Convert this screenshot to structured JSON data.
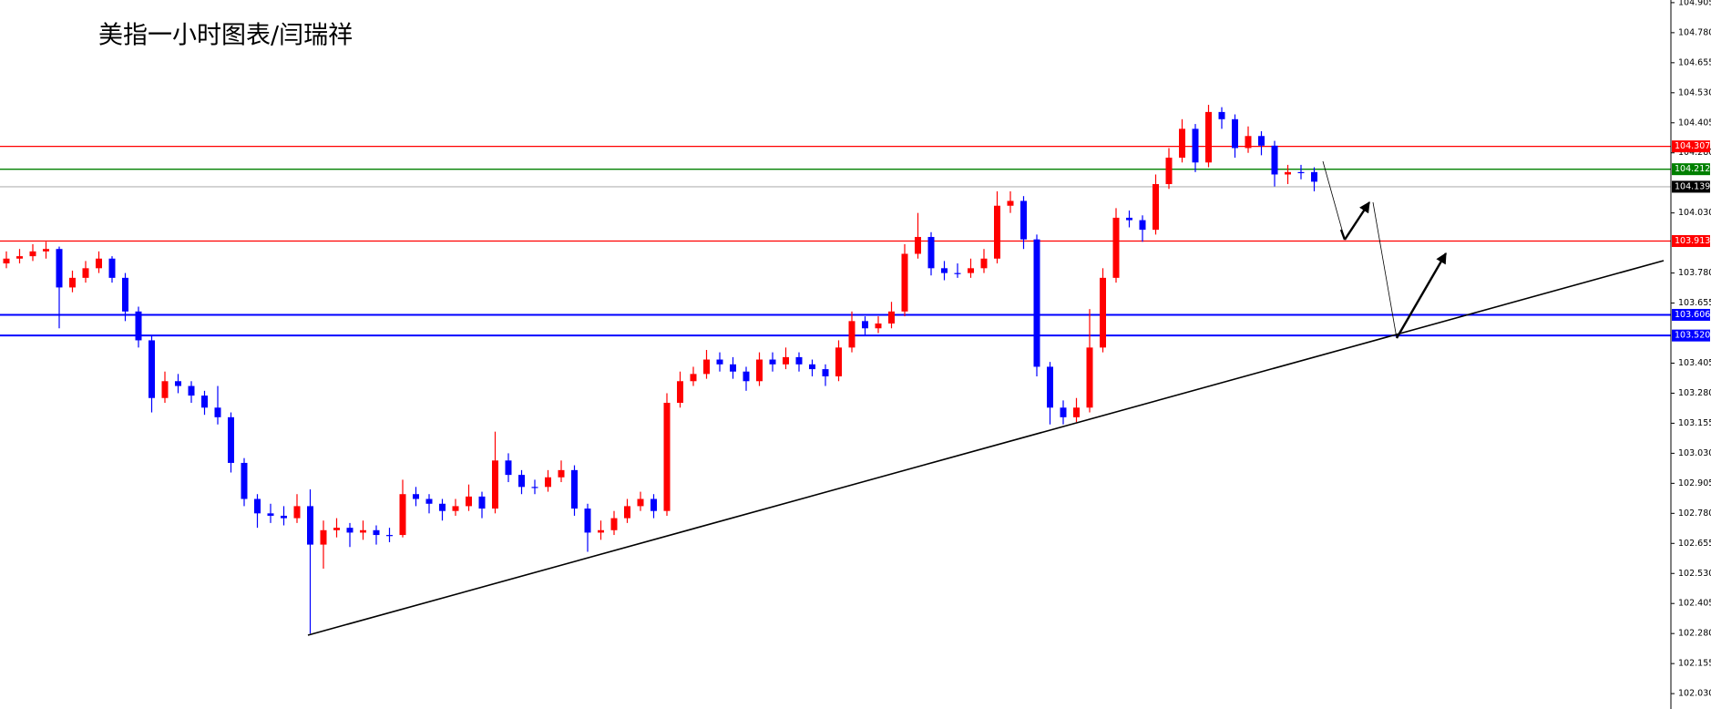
{
  "chart_data": {
    "type": "candlestick",
    "title": "美指一小时图表/闫瑞祥",
    "ylim": [
      101.966,
      104.916
    ],
    "yticks": [
      104.905,
      {
        "value": 104.78,
        "label": "104.780"
      },
      104.655,
      {
        "value": 104.53,
        "label": "104.530"
      },
      104.405,
      {
        "value": 104.28,
        "label": "104.280"
      },
      {
        "value": 104.03,
        "label": "104.030"
      },
      {
        "value": 103.78,
        "label": "103.780"
      },
      103.655,
      103.405,
      {
        "value": 103.28,
        "label": "103.280"
      },
      103.155,
      {
        "value": 103.03,
        "label": "103.030"
      },
      102.905,
      {
        "value": 102.78,
        "label": "102.780"
      },
      102.655,
      {
        "value": 102.53,
        "label": "102.530"
      },
      102.405,
      {
        "value": 102.28,
        "label": "102.280"
      },
      102.155,
      {
        "value": 102.03,
        "label": "102.030"
      }
    ],
    "up_color": "#ff0000",
    "down_color": "#0000ff",
    "levels": [
      {
        "value": 104.307,
        "color": "#ff0000"
      },
      {
        "value": 104.212,
        "color": "#008000"
      },
      {
        "value": 104.139,
        "color": "#000000",
        "line_color": "#c0c0c0"
      },
      {
        "value": 103.913,
        "color": "#ff0000"
      },
      {
        "value": 103.606,
        "color": "#0000ff"
      },
      {
        "value": 103.52,
        "label": "103.520",
        "color": "#0000ff"
      }
    ],
    "candles": [
      [
        103.82,
        103.87,
        103.8,
        103.84
      ],
      [
        103.84,
        103.88,
        103.82,
        103.85
      ],
      [
        103.85,
        103.9,
        103.83,
        103.87
      ],
      [
        103.87,
        103.91,
        103.84,
        103.88
      ],
      [
        103.88,
        103.89,
        103.55,
        103.72
      ],
      [
        103.72,
        103.79,
        103.7,
        103.76
      ],
      [
        103.76,
        103.83,
        103.74,
        103.8
      ],
      [
        103.8,
        103.87,
        103.78,
        103.84
      ],
      [
        103.84,
        103.85,
        103.74,
        103.76
      ],
      [
        103.76,
        103.78,
        103.58,
        103.62
      ],
      [
        103.62,
        103.64,
        103.47,
        103.5
      ],
      [
        103.5,
        103.52,
        103.2,
        103.26
      ],
      [
        103.26,
        103.37,
        103.24,
        103.33
      ],
      [
        103.33,
        103.36,
        103.28,
        103.31
      ],
      [
        103.31,
        103.33,
        103.24,
        103.27
      ],
      [
        103.27,
        103.29,
        103.19,
        103.22
      ],
      [
        103.22,
        103.31,
        103.15,
        103.18
      ],
      [
        103.18,
        103.2,
        102.95,
        102.99
      ],
      [
        102.99,
        103.01,
        102.81,
        102.84
      ],
      [
        102.84,
        102.86,
        102.72,
        102.78
      ],
      [
        102.78,
        102.82,
        102.74,
        102.77
      ],
      [
        102.77,
        102.81,
        102.73,
        102.76
      ],
      [
        102.76,
        102.86,
        102.74,
        102.81
      ],
      [
        102.81,
        102.88,
        102.28,
        102.65
      ],
      [
        102.65,
        102.75,
        102.55,
        102.71
      ],
      [
        102.71,
        102.76,
        102.68,
        102.72
      ],
      [
        102.72,
        102.74,
        102.64,
        102.7
      ],
      [
        102.7,
        102.75,
        102.67,
        102.71
      ],
      [
        102.71,
        102.73,
        102.65,
        102.69
      ],
      [
        102.69,
        102.72,
        102.66,
        102.69
      ],
      [
        102.69,
        102.92,
        102.68,
        102.86
      ],
      [
        102.86,
        102.89,
        102.81,
        102.84
      ],
      [
        102.84,
        102.86,
        102.78,
        102.82
      ],
      [
        102.82,
        102.84,
        102.75,
        102.79
      ],
      [
        102.79,
        102.84,
        102.77,
        102.81
      ],
      [
        102.81,
        102.9,
        102.79,
        102.85
      ],
      [
        102.85,
        102.87,
        102.76,
        102.8
      ],
      [
        102.8,
        103.12,
        102.78,
        103.0
      ],
      [
        103.0,
        103.03,
        102.91,
        102.94
      ],
      [
        102.94,
        102.96,
        102.86,
        102.89
      ],
      [
        102.89,
        102.92,
        102.86,
        102.89
      ],
      [
        102.89,
        102.96,
        102.87,
        102.93
      ],
      [
        102.93,
        103.0,
        102.91,
        102.96
      ],
      [
        102.96,
        102.98,
        102.77,
        102.8
      ],
      [
        102.8,
        102.82,
        102.62,
        102.7
      ],
      [
        102.7,
        102.75,
        102.67,
        102.71
      ],
      [
        102.71,
        102.79,
        102.69,
        102.76
      ],
      [
        102.76,
        102.84,
        102.74,
        102.81
      ],
      [
        102.81,
        102.87,
        102.79,
        102.84
      ],
      [
        102.84,
        102.86,
        102.76,
        102.79
      ],
      [
        102.79,
        103.28,
        102.77,
        103.24
      ],
      [
        103.24,
        103.37,
        103.22,
        103.33
      ],
      [
        103.33,
        103.39,
        103.31,
        103.36
      ],
      [
        103.36,
        103.46,
        103.34,
        103.42
      ],
      [
        103.42,
        103.45,
        103.37,
        103.4
      ],
      [
        103.4,
        103.43,
        103.34,
        103.37
      ],
      [
        103.37,
        103.39,
        103.29,
        103.33
      ],
      [
        103.33,
        103.45,
        103.31,
        103.42
      ],
      [
        103.42,
        103.45,
        103.37,
        103.4
      ],
      [
        103.4,
        103.47,
        103.38,
        103.43
      ],
      [
        103.43,
        103.45,
        103.37,
        103.4
      ],
      [
        103.4,
        103.42,
        103.35,
        103.38
      ],
      [
        103.38,
        103.4,
        103.31,
        103.35
      ],
      [
        103.35,
        103.5,
        103.33,
        103.47
      ],
      [
        103.47,
        103.62,
        103.45,
        103.58
      ],
      [
        103.58,
        103.6,
        103.52,
        103.55
      ],
      [
        103.55,
        103.6,
        103.53,
        103.57
      ],
      [
        103.57,
        103.66,
        103.55,
        103.62
      ],
      [
        103.62,
        103.9,
        103.6,
        103.86
      ],
      [
        103.86,
        104.03,
        103.84,
        103.93
      ],
      [
        103.93,
        103.95,
        103.77,
        103.8
      ],
      [
        103.8,
        103.83,
        103.75,
        103.78
      ],
      [
        103.78,
        103.82,
        103.76,
        103.78
      ],
      [
        103.78,
        103.84,
        103.76,
        103.8
      ],
      [
        103.8,
        103.88,
        103.78,
        103.84
      ],
      [
        103.84,
        104.12,
        103.82,
        104.06
      ],
      [
        104.06,
        104.12,
        104.03,
        104.08
      ],
      [
        104.08,
        104.1,
        103.88,
        103.92
      ],
      [
        103.92,
        103.94,
        103.35,
        103.39
      ],
      [
        103.39,
        103.41,
        103.15,
        103.22
      ],
      [
        103.22,
        103.25,
        103.15,
        103.18
      ],
      [
        103.18,
        103.26,
        103.16,
        103.22
      ],
      [
        103.22,
        103.63,
        103.2,
        103.47
      ],
      [
        103.47,
        103.8,
        103.45,
        103.76
      ],
      [
        103.76,
        104.05,
        103.74,
        104.01
      ],
      [
        104.01,
        104.04,
        103.97,
        104.0
      ],
      [
        104.0,
        104.02,
        103.91,
        103.96
      ],
      [
        103.96,
        104.19,
        103.94,
        104.15
      ],
      [
        104.15,
        104.3,
        104.13,
        104.26
      ],
      [
        104.26,
        104.42,
        104.24,
        104.38
      ],
      [
        104.38,
        104.4,
        104.2,
        104.24
      ],
      [
        104.24,
        104.48,
        104.22,
        104.45
      ],
      [
        104.45,
        104.47,
        104.38,
        104.42
      ],
      [
        104.42,
        104.44,
        104.26,
        104.3
      ],
      [
        104.3,
        104.39,
        104.28,
        104.35
      ],
      [
        104.35,
        104.37,
        104.27,
        104.31
      ],
      [
        104.31,
        104.33,
        104.14,
        104.19
      ],
      [
        104.19,
        104.23,
        104.15,
        104.2
      ],
      [
        104.2,
        104.23,
        104.17,
        104.2
      ],
      [
        104.2,
        104.22,
        104.12,
        104.16
      ]
    ]
  }
}
